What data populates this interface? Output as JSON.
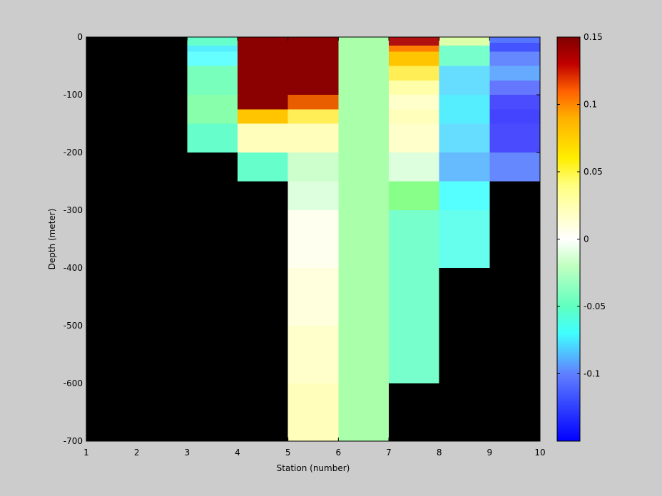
{
  "chart_data": {
    "type": "heatmap",
    "title": "",
    "xlabel": "Station (number)",
    "ylabel": "Depth (meter)",
    "xlim": [
      1,
      10
    ],
    "ylim": [
      -700,
      0
    ],
    "xticks": [
      1,
      2,
      3,
      4,
      5,
      6,
      7,
      8,
      9,
      10
    ],
    "yticks": [
      0,
      -100,
      -200,
      -300,
      -400,
      -500,
      -600,
      -700
    ],
    "background_color": "#000000",
    "colormap": "jet",
    "clim": [
      -0.15,
      0.15
    ],
    "colorbar": {
      "position": "right",
      "ticks": [
        0.15,
        0.1,
        0.05,
        0,
        -0.05,
        -0.1
      ],
      "tick_labels": [
        "0.15",
        "0.1",
        "0.05",
        "0",
        "-0.05",
        "-0.1"
      ],
      "color_stops": [
        {
          "value": 0.15,
          "color": "#800000"
        },
        {
          "value": 0.13,
          "color": "#c00000"
        },
        {
          "value": 0.11,
          "color": "#ff6000"
        },
        {
          "value": 0.09,
          "color": "#ffb000"
        },
        {
          "value": 0.06,
          "color": "#ffee00"
        },
        {
          "value": 0.04,
          "color": "#ffff80"
        },
        {
          "value": 0.0,
          "color": "#ffffff"
        },
        {
          "value": -0.02,
          "color": "#c0ffc0"
        },
        {
          "value": -0.05,
          "color": "#60ffc0"
        },
        {
          "value": -0.07,
          "color": "#40ffff"
        },
        {
          "value": -0.1,
          "color": "#6080ff"
        },
        {
          "value": -0.15,
          "color": "#0000ff"
        }
      ]
    },
    "columns": [
      {
        "station_from": 3,
        "station_to": 4,
        "cells": [
          {
            "top": 0,
            "bottom": -15,
            "color": "#66ffcc"
          },
          {
            "top": -15,
            "bottom": -25,
            "color": "#55eeff"
          },
          {
            "top": -25,
            "bottom": -50,
            "color": "#66ffff"
          },
          {
            "top": -50,
            "bottom": -100,
            "color": "#77ffbb"
          },
          {
            "top": -100,
            "bottom": -150,
            "color": "#88ffaa"
          },
          {
            "top": -150,
            "bottom": -200,
            "color": "#66ffcc"
          }
        ]
      },
      {
        "station_from": 4,
        "station_to": 5,
        "cells": [
          {
            "top": 0,
            "bottom": -125,
            "color": "#8b0000"
          },
          {
            "top": -125,
            "bottom": -150,
            "color": "#ffc500"
          },
          {
            "top": -150,
            "bottom": -200,
            "color": "#ffffbb"
          },
          {
            "top": -200,
            "bottom": -250,
            "color": "#66ffcc"
          }
        ]
      },
      {
        "station_from": 5,
        "station_to": 6,
        "cells": [
          {
            "top": 0,
            "bottom": -100,
            "color": "#8b0000"
          },
          {
            "top": -100,
            "bottom": -125,
            "color": "#e95f00"
          },
          {
            "top": -125,
            "bottom": -150,
            "color": "#ffee55"
          },
          {
            "top": -150,
            "bottom": -200,
            "color": "#ffffbb"
          },
          {
            "top": -200,
            "bottom": -250,
            "color": "#ccffcc"
          },
          {
            "top": -250,
            "bottom": -300,
            "color": "#ddffdd"
          },
          {
            "top": -300,
            "bottom": -400,
            "color": "#fffff0"
          },
          {
            "top": -400,
            "bottom": -500,
            "color": "#ffffdd"
          },
          {
            "top": -500,
            "bottom": -600,
            "color": "#ffffcc"
          },
          {
            "top": -600,
            "bottom": -700,
            "color": "#ffffbb"
          }
        ]
      },
      {
        "station_from": 6,
        "station_to": 7,
        "cells": [
          {
            "top": 0,
            "bottom": -700,
            "color": "#aaffaa"
          }
        ]
      },
      {
        "station_from": 7,
        "station_to": 8,
        "cells": [
          {
            "top": 0,
            "bottom": -15,
            "color": "#b01010"
          },
          {
            "top": -15,
            "bottom": -25,
            "color": "#ff8000"
          },
          {
            "top": -25,
            "bottom": -50,
            "color": "#ffc500"
          },
          {
            "top": -50,
            "bottom": -75,
            "color": "#ffee55"
          },
          {
            "top": -75,
            "bottom": -100,
            "color": "#ffffaa"
          },
          {
            "top": -100,
            "bottom": -125,
            "color": "#ffffcc"
          },
          {
            "top": -125,
            "bottom": -150,
            "color": "#ffffbb"
          },
          {
            "top": -150,
            "bottom": -200,
            "color": "#ffffcc"
          },
          {
            "top": -200,
            "bottom": -250,
            "color": "#ddffdd"
          },
          {
            "top": -250,
            "bottom": -300,
            "color": "#88ff88"
          },
          {
            "top": -300,
            "bottom": -600,
            "color": "#77ffcc"
          }
        ]
      },
      {
        "station_from": 8,
        "station_to": 9,
        "cells": [
          {
            "top": 0,
            "bottom": -15,
            "color": "#ddffaa"
          },
          {
            "top": -15,
            "bottom": -50,
            "color": "#77ffcc"
          },
          {
            "top": -50,
            "bottom": -100,
            "color": "#66ddff"
          },
          {
            "top": -100,
            "bottom": -150,
            "color": "#55eeff"
          },
          {
            "top": -150,
            "bottom": -200,
            "color": "#66ddff"
          },
          {
            "top": -200,
            "bottom": -250,
            "color": "#66bbff"
          },
          {
            "top": -250,
            "bottom": -300,
            "color": "#55ffff"
          },
          {
            "top": -300,
            "bottom": -400,
            "color": "#66ffee"
          }
        ]
      },
      {
        "station_from": 9,
        "station_to": 10,
        "cells": [
          {
            "top": 0,
            "bottom": -10,
            "color": "#5577ff"
          },
          {
            "top": -10,
            "bottom": -25,
            "color": "#4455ff"
          },
          {
            "top": -25,
            "bottom": -50,
            "color": "#6688ff"
          },
          {
            "top": -50,
            "bottom": -75,
            "color": "#66aaff"
          },
          {
            "top": -75,
            "bottom": -100,
            "color": "#6677ff"
          },
          {
            "top": -100,
            "bottom": -125,
            "color": "#4c4cff"
          },
          {
            "top": -125,
            "bottom": -150,
            "color": "#4444ff"
          },
          {
            "top": -150,
            "bottom": -200,
            "color": "#4a4aff"
          },
          {
            "top": -200,
            "bottom": -250,
            "color": "#6688ff"
          }
        ]
      }
    ]
  }
}
